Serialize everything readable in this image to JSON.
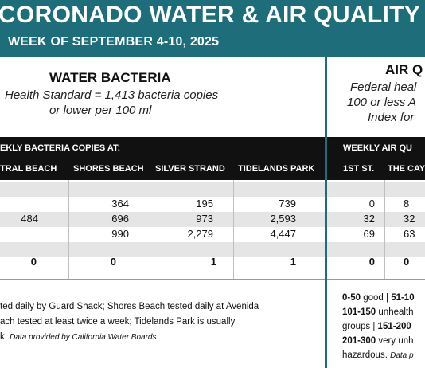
{
  "header": {
    "title": "CORONADO WATER & AIR QUALITY R",
    "subtitle": "WEEK OF SEPTEMBER 4-10, 2025"
  },
  "water": {
    "heading": "WATER BACTERIA",
    "standard_line1": "Health Standard  = 1,413 bacteria copies",
    "standard_line2": "or lower per 100 ml",
    "bar_title": "EKLY BACTERIA COPIES AT:",
    "columns": [
      "TRAL BEACH",
      "SHORES BEACH",
      "SILVER STRAND",
      "TIDELANDS PARK"
    ],
    "rows": [
      [
        "",
        "",
        "",
        ""
      ],
      [
        "",
        "364",
        "195",
        "739"
      ],
      [
        "484",
        "696",
        "973",
        "2,593"
      ],
      [
        "",
        "990",
        "2,279",
        "4,447"
      ],
      [
        "0",
        "0",
        "1",
        "1"
      ]
    ],
    "note_line1": "ted daily by Guard Shack; Shores Beach tested daily at Avenida",
    "note_line2": "ach tested at least twice a week; Tidelands Park is usually",
    "note_line3_a": "k. ",
    "note_line3_b": "Data provided by California Water Boards"
  },
  "air": {
    "heading": "AIR Q",
    "standard_line1": "Federal heal",
    "standard_line2": "100 or less A",
    "standard_line3": "Index for",
    "bar_title": "WEEKLY AIR QU",
    "columns": [
      "1ST ST.",
      "THE CAY"
    ],
    "rows": [
      [
        "",
        ""
      ],
      [
        "0",
        "8"
      ],
      [
        "32",
        "32"
      ],
      [
        "69",
        "63"
      ],
      [
        "0",
        "0"
      ]
    ],
    "legend_line1_a": "0-50",
    "legend_line1_b": " good | ",
    "legend_line1_c": "51-10",
    "legend_line2_a": "101-150",
    "legend_line2_b": " unhealth",
    "legend_line3_a": "groups | ",
    "legend_line3_b": "151-200",
    "legend_line4_a": "201-300",
    "legend_line4_b": " very unh",
    "legend_line5_a": "hazardous. ",
    "legend_line5_b": "Data p"
  },
  "colors": {
    "header_teal": "#1d6e7a",
    "row_grey": "#e5e5e5",
    "bar_black": "#111111"
  }
}
